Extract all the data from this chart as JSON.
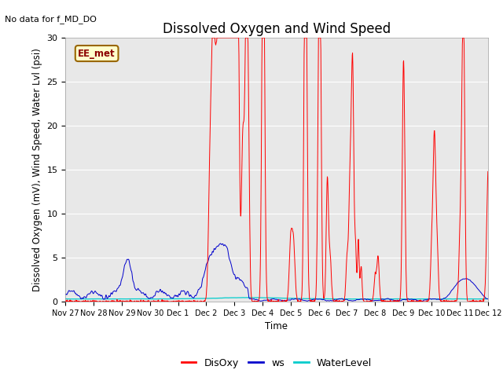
{
  "title": "Dissolved Oxygen and Wind Speed",
  "top_left_text": "No data for f_MD_DO",
  "ylabel": "Dissolved Oxygen (mV), Wind Speed, Water Lvl (psi)",
  "xlabel": "Time",
  "annotation_box": "EE_met",
  "ylim": [
    0,
    30
  ],
  "x_tick_labels": [
    "Nov 27",
    "Nov 28",
    "Nov 29",
    "Nov 30",
    "Dec 1",
    "Dec 2",
    "Dec 3",
    "Dec 4",
    "Dec 5",
    "Dec 6",
    "Dec 7",
    "Dec 8",
    "Dec 9",
    "Dec 10",
    "Dec 11",
    "Dec 12"
  ],
  "legend_labels": [
    "DisOxy",
    "ws",
    "WaterLevel"
  ],
  "line_colors": {
    "DisOxy": "#ff0000",
    "ws": "#0000cc",
    "WaterLevel": "#00cccc"
  },
  "background_color": "#e8e8e8",
  "fig_background": "#ffffff",
  "title_fontsize": 12,
  "label_fontsize": 8.5
}
